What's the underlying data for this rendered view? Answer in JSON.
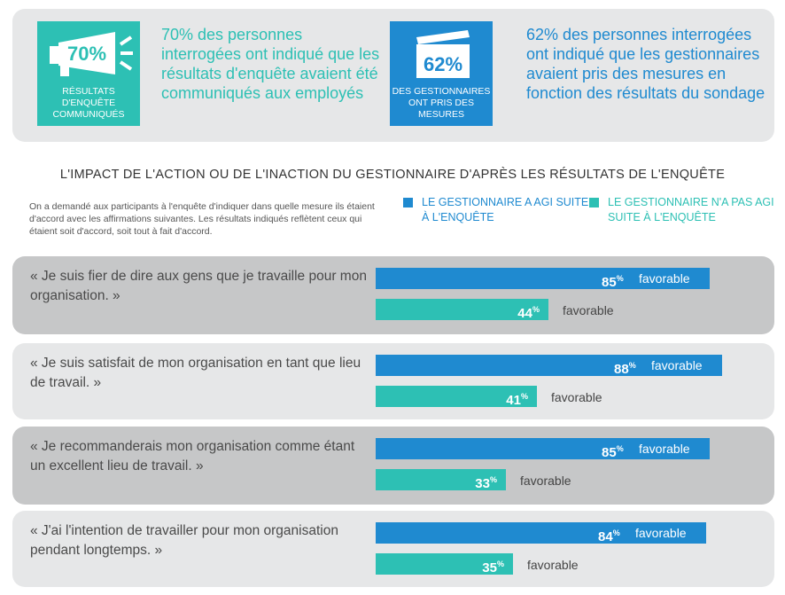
{
  "header": {
    "stat1": {
      "value": "70%",
      "caption": "RÉSULTATS D'ENQUÊTE COMMUNIQUÉS",
      "text": "70% des personnes interrogées ont indiqué que les résultats d'enquête avaient été communiqués aux employés",
      "icon": "megaphone-icon"
    },
    "stat2": {
      "value": "62%",
      "caption": "DES GESTIONNAIRES ONT PRIS DES MESURES",
      "text": "62% des personnes interrogées ont indiqué que les gestionnaires avaient pris des mesures en fonction des résultats du sondage",
      "icon": "clapperboard-icon"
    }
  },
  "section_title": "L'IMPACT DE L'ACTION OU DE L'INACTION DU GESTIONNAIRE D'APRÈS LES RÉSULTATS DE L'ENQUÊTE",
  "intro": "On a demandé aux participants à l'enquête d'indiquer dans quelle mesure ils étaient d'accord avec les affirmations suivantes. Les résultats indiqués reflètent ceux qui étaient soit d'accord, soit tout à fait d'accord.",
  "colors": {
    "blue": "#1f8ad0",
    "teal": "#2dc0b4",
    "panel": "#e6e7e8",
    "panel_dark": "#c6c7c8"
  },
  "chart_data": {
    "type": "bar",
    "orientation": "horizontal",
    "categories": [
      "« Je suis fier de dire aux gens que je travaille pour mon organisation. »",
      "« Je suis satisfait de mon organisation en tant que lieu de travail. »",
      "« Je recommanderais mon organisation comme étant un excellent lieu de travail. »",
      "« J'ai l'intention de travailler pour mon organisation pendant longtemps. »"
    ],
    "series": [
      {
        "name": "LE GESTIONNAIRE A AGI SUITE À L'ENQUÊTE",
        "values": [
          85,
          88,
          85,
          84
        ],
        "color": "#1f8ad0"
      },
      {
        "name": "LE GESTIONNAIRE N'A PAS AGI SUITE À L'ENQUÊTE",
        "values": [
          44,
          41,
          33,
          35
        ],
        "color": "#2dc0b4"
      }
    ],
    "value_suffix": "%",
    "value_label": "favorable",
    "xlim": [
      0,
      100
    ],
    "legend_position": "top-right",
    "grid": false
  }
}
